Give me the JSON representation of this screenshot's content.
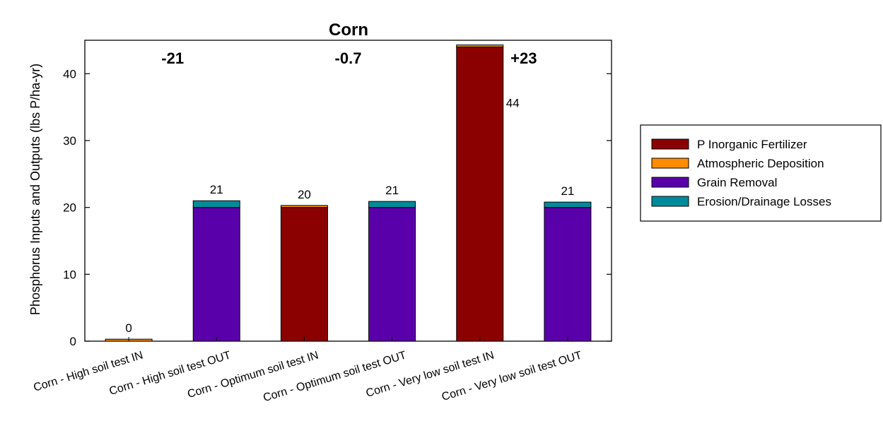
{
  "chart_data": {
    "type": "bar",
    "stacked": true,
    "title": "Corn",
    "xlabel": "",
    "ylabel": "Phosphorus Inputs and Outputs (lbs P/ha-yr)",
    "ylim": [
      0,
      45
    ],
    "yticks": [
      0,
      10,
      20,
      30,
      40
    ],
    "grid": false,
    "legend_position": "right",
    "categories": [
      "Corn - High soil test IN",
      "Corn - High soil test OUT",
      "Corn - Optimum soil test IN",
      "Corn - Optimum soil test OUT",
      "Corn - Very low soil test IN",
      "Corn - Very low soil test OUT"
    ],
    "series": [
      {
        "name": "P Inorganic Fertilizer",
        "color": "#8b0000",
        "values": [
          0,
          0,
          20,
          0,
          44,
          0
        ]
      },
      {
        "name": "Atmospheric Deposition",
        "color": "#ff8c00",
        "values": [
          0.3,
          0,
          0.3,
          0,
          0.3,
          0
        ]
      },
      {
        "name": "Grain Removal",
        "color": "#5a00aa",
        "values": [
          0,
          20,
          0,
          20,
          0,
          20
        ]
      },
      {
        "name": "Erosion/Drainage Losses",
        "color": "#008b9b",
        "values": [
          0,
          1,
          0,
          0.9,
          0,
          0.8
        ]
      }
    ],
    "totals": [
      "0",
      "21",
      "20",
      "21",
      "44",
      "21"
    ],
    "balances": [
      "-21",
      "-0.7",
      "+23"
    ]
  }
}
